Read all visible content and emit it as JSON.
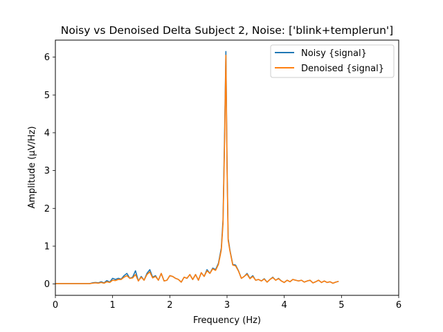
{
  "chart_data": {
    "type": "line",
    "title": "Noisy vs Denoised Delta Subject 2, Noise: ['blink+templerun']",
    "xlabel": "Frequency (Hz)",
    "ylabel": "Amplitude (μV/Hz)",
    "xlim": [
      0,
      6
    ],
    "ylim": [
      -0.3,
      6.45
    ],
    "xticks": [
      0,
      1,
      2,
      3,
      4,
      5,
      6
    ],
    "yticks": [
      0,
      1,
      2,
      3,
      4,
      5,
      6
    ],
    "grid": false,
    "legend_position": "top-right",
    "series": [
      {
        "name": "Noisy {signal}",
        "color": "#1f77b4",
        "x": [
          0,
          0.6,
          0.65,
          0.7,
          0.75,
          0.8,
          0.85,
          0.9,
          0.95,
          1.0,
          1.05,
          1.1,
          1.15,
          1.2,
          1.25,
          1.3,
          1.35,
          1.4,
          1.45,
          1.5,
          1.55,
          1.6,
          1.65,
          1.7,
          1.75,
          1.8,
          1.85,
          1.9,
          1.95,
          2.0,
          2.05,
          2.1,
          2.15,
          2.2,
          2.25,
          2.3,
          2.35,
          2.4,
          2.45,
          2.5,
          2.55,
          2.6,
          2.65,
          2.7,
          2.75,
          2.8,
          2.85,
          2.9,
          2.93,
          2.96,
          2.98,
          3.0,
          3.02,
          3.05,
          3.1,
          3.15,
          3.2,
          3.25,
          3.3,
          3.35,
          3.4,
          3.45,
          3.5,
          3.55,
          3.6,
          3.65,
          3.7,
          3.75,
          3.8,
          3.85,
          3.9,
          3.95,
          4.0,
          4.05,
          4.1,
          4.15,
          4.2,
          4.25,
          4.3,
          4.35,
          4.4,
          4.45,
          4.5,
          4.55,
          4.6,
          4.65,
          4.7,
          4.75,
          4.8,
          4.85,
          4.9,
          4.95
        ],
        "values": [
          0.01,
          0.01,
          0.03,
          0.04,
          0.03,
          0.06,
          0.03,
          0.09,
          0.05,
          0.15,
          0.12,
          0.15,
          0.13,
          0.22,
          0.28,
          0.15,
          0.18,
          0.35,
          0.08,
          0.2,
          0.1,
          0.28,
          0.38,
          0.18,
          0.22,
          0.1,
          0.28,
          0.08,
          0.1,
          0.22,
          0.2,
          0.15,
          0.12,
          0.05,
          0.18,
          0.15,
          0.25,
          0.12,
          0.25,
          0.1,
          0.3,
          0.2,
          0.38,
          0.28,
          0.42,
          0.38,
          0.55,
          0.95,
          1.7,
          4.2,
          6.15,
          3.2,
          1.2,
          0.9,
          0.52,
          0.5,
          0.35,
          0.15,
          0.2,
          0.28,
          0.15,
          0.22,
          0.1,
          0.12,
          0.08,
          0.14,
          0.05,
          0.12,
          0.18,
          0.1,
          0.15,
          0.08,
          0.04,
          0.1,
          0.06,
          0.12,
          0.1,
          0.08,
          0.1,
          0.05,
          0.08,
          0.1,
          0.03,
          0.06,
          0.1,
          0.04,
          0.08,
          0.04,
          0.06,
          0.02,
          0.05,
          0.07
        ]
      },
      {
        "name": "Denoised {signal}",
        "color": "#ff7f0e",
        "x": [
          0,
          0.6,
          0.65,
          0.7,
          0.75,
          0.8,
          0.85,
          0.9,
          0.95,
          1.0,
          1.05,
          1.1,
          1.15,
          1.2,
          1.25,
          1.3,
          1.35,
          1.4,
          1.45,
          1.5,
          1.55,
          1.6,
          1.65,
          1.7,
          1.75,
          1.8,
          1.85,
          1.9,
          1.95,
          2.0,
          2.05,
          2.1,
          2.15,
          2.2,
          2.25,
          2.3,
          2.35,
          2.4,
          2.45,
          2.5,
          2.55,
          2.6,
          2.65,
          2.7,
          2.75,
          2.8,
          2.85,
          2.9,
          2.93,
          2.96,
          2.98,
          3.0,
          3.02,
          3.05,
          3.1,
          3.15,
          3.2,
          3.25,
          3.3,
          3.35,
          3.4,
          3.45,
          3.5,
          3.55,
          3.6,
          3.65,
          3.7,
          3.75,
          3.8,
          3.85,
          3.9,
          3.95,
          4.0,
          4.05,
          4.1,
          4.15,
          4.2,
          4.25,
          4.3,
          4.35,
          4.4,
          4.45,
          4.5,
          4.55,
          4.6,
          4.65,
          4.7,
          4.75,
          4.8,
          4.85,
          4.9,
          4.95
        ],
        "values": [
          0.01,
          0.01,
          0.02,
          0.03,
          0.02,
          0.04,
          0.02,
          0.06,
          0.04,
          0.1,
          0.09,
          0.12,
          0.12,
          0.18,
          0.22,
          0.15,
          0.16,
          0.25,
          0.08,
          0.18,
          0.1,
          0.25,
          0.32,
          0.16,
          0.2,
          0.1,
          0.28,
          0.08,
          0.1,
          0.22,
          0.2,
          0.15,
          0.12,
          0.05,
          0.18,
          0.15,
          0.25,
          0.12,
          0.25,
          0.1,
          0.3,
          0.2,
          0.35,
          0.28,
          0.4,
          0.36,
          0.52,
          0.9,
          1.6,
          4.0,
          6.05,
          3.1,
          1.15,
          0.88,
          0.5,
          0.48,
          0.34,
          0.15,
          0.2,
          0.26,
          0.14,
          0.2,
          0.1,
          0.12,
          0.08,
          0.13,
          0.05,
          0.12,
          0.17,
          0.1,
          0.14,
          0.08,
          0.04,
          0.1,
          0.06,
          0.12,
          0.1,
          0.08,
          0.1,
          0.05,
          0.08,
          0.1,
          0.03,
          0.06,
          0.1,
          0.04,
          0.08,
          0.04,
          0.06,
          0.02,
          0.05,
          0.07
        ]
      }
    ]
  }
}
